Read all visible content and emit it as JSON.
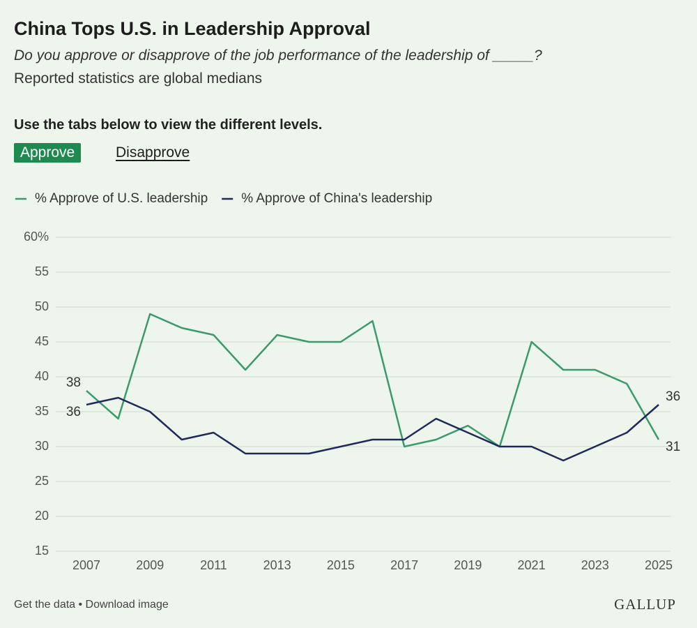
{
  "header": {
    "title": "China Tops U.S. in Leadership Approval",
    "subtitle": "Do you approve or disapprove of the job performance of the leadership of _____?",
    "note": "Reported statistics are global medians",
    "instruction": "Use the tabs below to view the different levels."
  },
  "tabs": [
    "Approve",
    "Disapprove"
  ],
  "chart_data": {
    "type": "line",
    "x": [
      2007,
      2008,
      2009,
      2010,
      2011,
      2012,
      2013,
      2014,
      2015,
      2016,
      2017,
      2018,
      2019,
      2020,
      2021,
      2022,
      2023,
      2024,
      2025
    ],
    "series": [
      {
        "name": "% Approve of U.S. leadership",
        "color": "#3a9a6a",
        "values": [
          38,
          34,
          49,
          47,
          46,
          41,
          46,
          45,
          45,
          48,
          30,
          31,
          33,
          30,
          45,
          41,
          41,
          39,
          31
        ]
      },
      {
        "name": "% Approve of China's leadership",
        "color": "#1f2a5a",
        "values": [
          36,
          37,
          35,
          31,
          32,
          29,
          29,
          29,
          30,
          31,
          31,
          34,
          32,
          30,
          30,
          28,
          30,
          32,
          36
        ]
      }
    ],
    "xlim": [
      2007,
      2025
    ],
    "xticks": [
      2007,
      2009,
      2011,
      2013,
      2015,
      2017,
      2019,
      2021,
      2023,
      2025
    ],
    "ylim": [
      15,
      60
    ],
    "yticks": [
      15,
      20,
      25,
      30,
      35,
      40,
      45,
      50,
      55,
      {
        "value": 60,
        "label": "60%"
      }
    ],
    "grid": true,
    "legend": "top-left"
  },
  "footer": {
    "links": "Get the data • Download image",
    "brand": "GALLUP"
  }
}
